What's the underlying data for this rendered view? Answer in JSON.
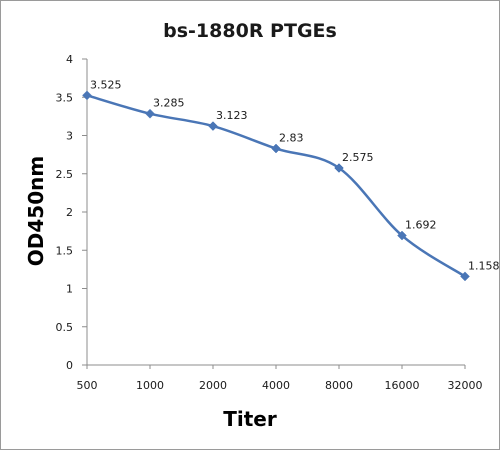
{
  "chart_data": {
    "type": "line",
    "title": "bs-1880R PTGEs",
    "xlabel": "Titer",
    "ylabel": "OD450nm",
    "categories": [
      "500",
      "1000",
      "2000",
      "4000",
      "8000",
      "16000",
      "32000"
    ],
    "series": [
      {
        "values": [
          3.525,
          3.285,
          3.123,
          2.83,
          2.575,
          1.692,
          1.158
        ],
        "data_labels": [
          "3.525",
          "3.285",
          "3.123",
          "2.83",
          "2.575",
          "1.692",
          "1.158"
        ],
        "color": "#4a76b6",
        "marker": "diamond",
        "smooth": true
      }
    ],
    "ylim": [
      0,
      4
    ],
    "yticks": [
      "0",
      "0.5",
      "1",
      "1.5",
      "2",
      "2.5",
      "3",
      "3.5",
      "4"
    ],
    "grid": false,
    "legend": "none"
  }
}
